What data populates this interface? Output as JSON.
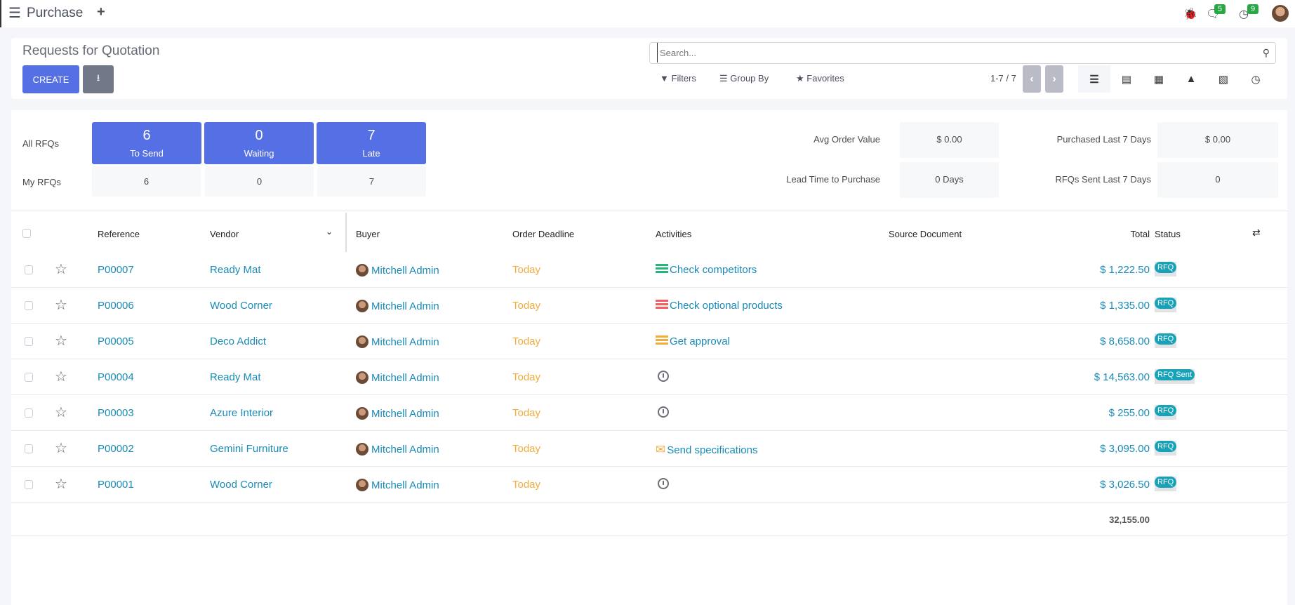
{
  "navbar": {
    "app_title": "Purchase",
    "messages_count": "5",
    "activities_count": "9",
    "icons": [
      "menu-icon",
      "plus-icon",
      "bug-icon",
      "chat-icon",
      "clock-icon",
      "user-avatar"
    ]
  },
  "control_panel": {
    "title": "Requests for Quotation",
    "create_label": "CREATE",
    "search_placeholder": "Search...",
    "filters_label": "Filters",
    "group_by_label": "Group By",
    "favorites_label": "Favorites",
    "pager": "1-7 / 7",
    "views": [
      "list",
      "kanban",
      "pivot",
      "graph",
      "calendar",
      "activity"
    ],
    "active_view": "list"
  },
  "dashboard": {
    "all_label": "All RFQs",
    "my_label": "My RFQs",
    "tiles": [
      {
        "value": "6",
        "label": "To Send",
        "mine": "6"
      },
      {
        "value": "0",
        "label": "Waiting",
        "mine": "0"
      },
      {
        "value": "7",
        "label": "Late",
        "mine": "7"
      }
    ],
    "stats": [
      {
        "label": "Avg Order Value",
        "value": "$ 0.00"
      },
      {
        "label": "Purchased Last 7 Days",
        "value": "$ 0.00"
      },
      {
        "label": "Lead Time to Purchase",
        "value": "0 Days"
      },
      {
        "label": "RFQs Sent Last 7 Days",
        "value": "0"
      }
    ]
  },
  "table": {
    "headers": {
      "reference": "Reference",
      "vendor": "Vendor",
      "buyer": "Buyer",
      "deadline": "Order Deadline",
      "activities": "Activities",
      "source": "Source Document",
      "total": "Total",
      "status": "Status"
    },
    "rows": [
      {
        "reference": "P00007",
        "vendor": "Ready Mat",
        "buyer": "Mitchell Admin",
        "deadline": "Today",
        "activity": "Check competitors",
        "activity_color": "#28b57c",
        "total": "$ 1,222.50",
        "status": "RFQ"
      },
      {
        "reference": "P00006",
        "vendor": "Wood Corner",
        "buyer": "Mitchell Admin",
        "deadline": "Today",
        "activity": "Check optional products",
        "activity_color": "#f06060",
        "total": "$ 1,335.00",
        "status": "RFQ"
      },
      {
        "reference": "P00005",
        "vendor": "Deco Addict",
        "buyer": "Mitchell Admin",
        "deadline": "Today",
        "activity": "Get approval",
        "activity_color": "#f0ad3e",
        "total": "$ 8,658.00",
        "status": "RFQ"
      },
      {
        "reference": "P00004",
        "vendor": "Ready Mat",
        "buyer": "Mitchell Admin",
        "deadline": "Today",
        "activity": "",
        "total": "$ 14,563.00",
        "status": "RFQ Sent"
      },
      {
        "reference": "P00003",
        "vendor": "Azure Interior",
        "buyer": "Mitchell Admin",
        "deadline": "Today",
        "activity": "",
        "total": "$ 255.00",
        "status": "RFQ"
      },
      {
        "reference": "P00002",
        "vendor": "Gemini Furniture",
        "buyer": "Mitchell Admin",
        "deadline": "Today",
        "activity": "Send specifications",
        "activity_color": "#f0ad3e",
        "activity_icon": "envelope",
        "total": "$ 3,095.00",
        "status": "RFQ"
      },
      {
        "reference": "P00001",
        "vendor": "Wood Corner",
        "buyer": "Mitchell Admin",
        "deadline": "Today",
        "activity": "",
        "total": "$ 3,026.50",
        "status": "RFQ"
      }
    ],
    "grand_total": "32,155.00"
  },
  "colors": {
    "primary": "#5570e4",
    "link": "#1a8bb6",
    "today": "#f0ad3e",
    "status": "#17a2b8"
  }
}
